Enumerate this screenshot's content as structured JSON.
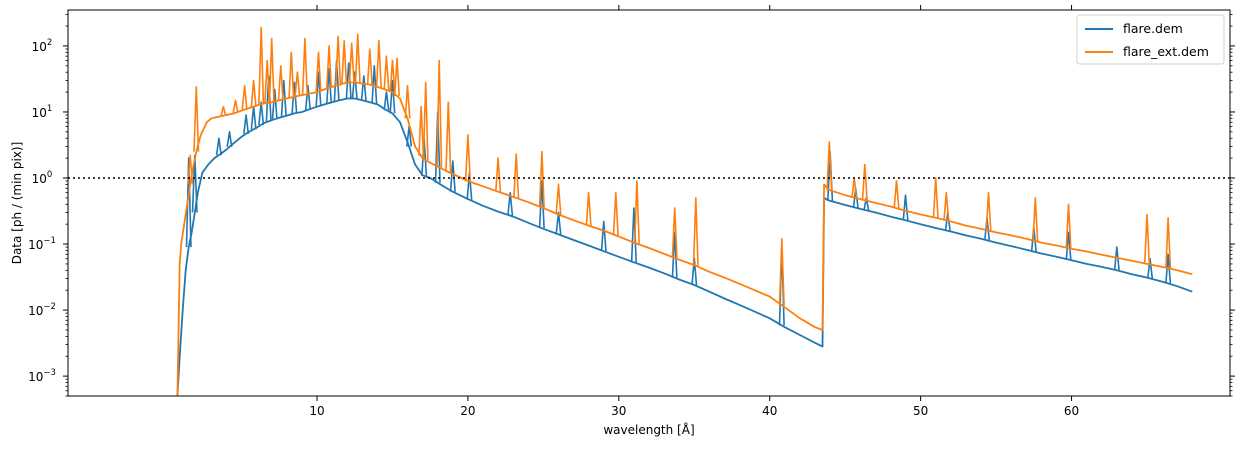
{
  "chart_data": {
    "type": "line",
    "title": "",
    "xlabel": "wavelength [Å]",
    "ylabel": "Data [ph / (min pix)]",
    "xlim": [
      -6.5,
      70.5
    ],
    "ylim": [
      0.0005,
      350
    ],
    "yscale": "log",
    "x_ticks": [
      10,
      20,
      30,
      40,
      50,
      60
    ],
    "x_tick_labels": [
      "10",
      "20",
      "30",
      "40",
      "50",
      "60"
    ],
    "y_ticks": [
      0.001,
      0.01,
      0.1,
      1,
      10,
      100
    ],
    "y_tick_labels": [
      "10",
      "10",
      "10",
      "10",
      "10",
      "10"
    ],
    "y_tick_exponents": [
      "−3",
      "−2",
      "−1",
      "0",
      "1",
      "2"
    ],
    "grid": false,
    "legend_position": "top-right",
    "reference_line": {
      "y": 1,
      "style": "dotted",
      "color": "#000000"
    },
    "series": [
      {
        "name": "flare.dem",
        "color": "#1f77b4",
        "x": [
          0.75,
          0.9,
          1.1,
          1.3,
          1.5,
          1.7,
          1.9,
          2.1,
          2.4,
          2.8,
          3.2,
          3.6,
          4.0,
          4.5,
          5.0,
          5.5,
          6.0,
          6.5,
          7.0,
          7.5,
          8.0,
          8.5,
          9.0,
          9.5,
          10.0,
          10.5,
          11.0,
          11.5,
          12.0,
          12.5,
          13.0,
          13.5,
          14.0,
          14.5,
          15.0,
          15.5,
          16.0,
          16.5,
          17.0,
          17.5,
          18.0,
          18.5,
          19.0,
          20.0,
          21.0,
          22.0,
          23.0,
          24.0,
          25.0,
          26.0,
          27.0,
          28.0,
          29.0,
          30.0,
          31.0,
          32.0,
          33.0,
          34.0,
          35.0,
          36.0,
          37.0,
          38.0,
          39.0,
          40.0,
          41.0,
          42.0,
          43.0,
          43.5,
          43.6,
          43.8,
          44.0,
          44.5,
          45.0,
          46.0,
          47.0,
          48.0,
          49.0,
          50.0,
          51.0,
          52.0,
          53.0,
          54.0,
          55.0,
          56.0,
          57.0,
          58.0,
          59.0,
          60.0,
          61.0,
          62.0,
          63.0,
          64.0,
          65.0,
          66.0,
          67.0,
          68.0
        ],
        "y": [
          0.0005,
          0.002,
          0.01,
          0.04,
          0.09,
          0.15,
          0.3,
          0.6,
          1.2,
          1.6,
          2.0,
          2.3,
          2.7,
          3.4,
          4.2,
          5.0,
          5.8,
          6.8,
          7.5,
          8.2,
          8.8,
          9.5,
          10,
          11,
          12,
          13,
          14,
          15,
          16,
          16,
          15,
          14,
          13,
          11,
          9.5,
          7,
          3.5,
          1.6,
          1.1,
          1.0,
          0.85,
          0.72,
          0.62,
          0.48,
          0.38,
          0.31,
          0.26,
          0.21,
          0.17,
          0.14,
          0.115,
          0.095,
          0.078,
          0.064,
          0.053,
          0.044,
          0.036,
          0.029,
          0.024,
          0.019,
          0.015,
          0.012,
          0.0095,
          0.0075,
          0.0055,
          0.0042,
          0.0032,
          0.0028,
          0.5,
          0.47,
          0.45,
          0.42,
          0.39,
          0.34,
          0.3,
          0.26,
          0.23,
          0.2,
          0.175,
          0.155,
          0.135,
          0.12,
          0.105,
          0.093,
          0.082,
          0.072,
          0.064,
          0.057,
          0.05,
          0.045,
          0.04,
          0.035,
          0.031,
          0.027,
          0.023,
          0.019
        ],
        "lines": [
          [
            1.5,
            2.0
          ],
          [
            1.9,
            2.2
          ],
          [
            3.5,
            4.0
          ],
          [
            4.2,
            5.0
          ],
          [
            5.3,
            9.0
          ],
          [
            5.8,
            12
          ],
          [
            6.3,
            14
          ],
          [
            6.8,
            35
          ],
          [
            7.2,
            22
          ],
          [
            7.8,
            30
          ],
          [
            8.5,
            28
          ],
          [
            9.4,
            25
          ],
          [
            10.1,
            40
          ],
          [
            10.8,
            45
          ],
          [
            11.3,
            60
          ],
          [
            12.1,
            55
          ],
          [
            12.5,
            40
          ],
          [
            13.1,
            35
          ],
          [
            13.8,
            50
          ],
          [
            14.6,
            20
          ],
          [
            15.0,
            30
          ],
          [
            16.1,
            6
          ],
          [
            17.1,
            4
          ],
          [
            18.0,
            10
          ],
          [
            19.0,
            1.8
          ],
          [
            20.1,
            1.2
          ],
          [
            22.8,
            0.6
          ],
          [
            24.9,
            0.9
          ],
          [
            26.0,
            0.3
          ],
          [
            29.0,
            0.22
          ],
          [
            31.0,
            0.35
          ],
          [
            33.7,
            0.15
          ],
          [
            35.0,
            0.06
          ],
          [
            40.8,
            0.09
          ],
          [
            44.0,
            2.5
          ],
          [
            45.7,
            0.7
          ],
          [
            46.4,
            0.5
          ],
          [
            49.0,
            0.55
          ],
          [
            51.8,
            0.3
          ],
          [
            54.4,
            0.25
          ],
          [
            57.5,
            0.18
          ],
          [
            59.8,
            0.15
          ],
          [
            63.0,
            0.09
          ],
          [
            65.2,
            0.06
          ],
          [
            66.4,
            0.07
          ]
        ]
      },
      {
        "name": "flare_ext.dem",
        "color": "#ff7f0e",
        "x": [
          0.75,
          0.9,
          1.0,
          1.2,
          1.4,
          1.6,
          1.8,
          2.0,
          2.3,
          2.7,
          3.0,
          3.5,
          4.0,
          4.5,
          5.0,
          5.5,
          6.0,
          6.5,
          7.0,
          7.5,
          8.0,
          8.5,
          9.0,
          9.5,
          10.0,
          10.5,
          11.0,
          11.5,
          12.0,
          12.5,
          13.0,
          13.5,
          14.0,
          14.5,
          15.0,
          15.5,
          16.0,
          16.5,
          17.0,
          17.5,
          18.0,
          18.5,
          19.0,
          20.0,
          21.0,
          22.0,
          23.0,
          24.0,
          25.0,
          26.0,
          27.0,
          28.0,
          29.0,
          30.0,
          31.0,
          32.0,
          33.0,
          34.0,
          35.0,
          36.0,
          37.0,
          38.0,
          39.0,
          40.0,
          41.0,
          42.0,
          43.0,
          43.5,
          43.6,
          43.8,
          44.0,
          44.5,
          45.0,
          46.0,
          47.0,
          48.0,
          49.0,
          50.0,
          51.0,
          52.0,
          53.0,
          54.0,
          55.0,
          56.0,
          57.0,
          58.0,
          59.0,
          60.0,
          61.0,
          62.0,
          63.0,
          64.0,
          65.0,
          66.0,
          67.0,
          68.0
        ],
        "y": [
          0.0005,
          0.05,
          0.1,
          0.2,
          0.4,
          0.8,
          1.5,
          2.5,
          4.5,
          7.0,
          8.0,
          8.5,
          9.0,
          9.5,
          10.5,
          11.5,
          12.5,
          13.5,
          14,
          15,
          16,
          17,
          18,
          19,
          20,
          22,
          24,
          26,
          28,
          28,
          27,
          26,
          24,
          22,
          20,
          16,
          8,
          3.0,
          2.0,
          1.7,
          1.5,
          1.3,
          1.15,
          0.9,
          0.75,
          0.62,
          0.52,
          0.43,
          0.35,
          0.28,
          0.23,
          0.19,
          0.16,
          0.13,
          0.105,
          0.087,
          0.071,
          0.058,
          0.048,
          0.038,
          0.031,
          0.025,
          0.02,
          0.016,
          0.011,
          0.0075,
          0.0055,
          0.005,
          0.8,
          0.7,
          0.65,
          0.6,
          0.55,
          0.48,
          0.42,
          0.37,
          0.32,
          0.28,
          0.25,
          0.22,
          0.19,
          0.17,
          0.15,
          0.135,
          0.12,
          0.105,
          0.095,
          0.085,
          0.077,
          0.069,
          0.062,
          0.056,
          0.05,
          0.045,
          0.04,
          0.035
        ],
        "lines": [
          [
            1.6,
            2.2
          ],
          [
            2.0,
            24
          ],
          [
            3.8,
            12
          ],
          [
            4.6,
            15
          ],
          [
            5.2,
            25
          ],
          [
            5.8,
            30
          ],
          [
            6.3,
            190
          ],
          [
            6.7,
            60
          ],
          [
            7.0,
            130
          ],
          [
            7.6,
            50
          ],
          [
            8.3,
            80
          ],
          [
            8.7,
            40
          ],
          [
            9.2,
            130
          ],
          [
            10.1,
            80
          ],
          [
            10.8,
            100
          ],
          [
            11.4,
            140
          ],
          [
            11.8,
            120
          ],
          [
            12.3,
            110
          ],
          [
            12.7,
            150
          ],
          [
            13.5,
            90
          ],
          [
            14.1,
            120
          ],
          [
            14.6,
            70
          ],
          [
            15.0,
            60
          ],
          [
            15.3,
            65
          ],
          [
            16.0,
            25
          ],
          [
            16.9,
            12
          ],
          [
            17.2,
            28
          ],
          [
            18.1,
            60
          ],
          [
            18.7,
            14
          ],
          [
            20.0,
            4.5
          ],
          [
            22.0,
            2.0
          ],
          [
            23.2,
            2.3
          ],
          [
            24.9,
            2.5
          ],
          [
            26.0,
            0.8
          ],
          [
            28.0,
            0.6
          ],
          [
            29.8,
            0.6
          ],
          [
            31.2,
            0.9
          ],
          [
            33.7,
            0.35
          ],
          [
            35.1,
            0.5
          ],
          [
            40.8,
            0.12
          ],
          [
            43.95,
            3.5
          ],
          [
            45.6,
            1.0
          ],
          [
            46.3,
            1.6
          ],
          [
            48.4,
            0.9
          ],
          [
            51.0,
            1.0
          ],
          [
            51.7,
            0.6
          ],
          [
            54.5,
            0.6
          ],
          [
            57.6,
            0.5
          ],
          [
            59.8,
            0.4
          ],
          [
            65.0,
            0.28
          ],
          [
            66.4,
            0.25
          ]
        ]
      }
    ]
  }
}
